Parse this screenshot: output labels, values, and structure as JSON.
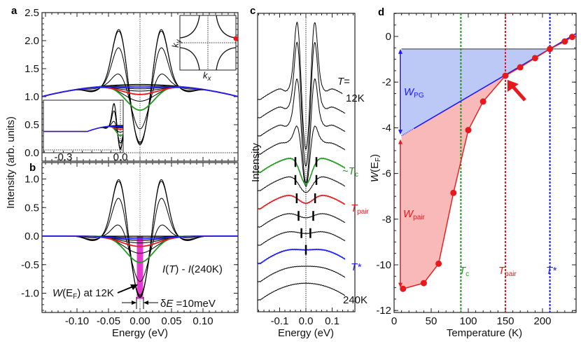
{
  "panel_letters": {
    "a": "a",
    "b": "b",
    "c": "c",
    "d": "d"
  },
  "colors": {
    "black": "#000000",
    "green": "#1e9a1e",
    "red": "#e8191c",
    "blue": "#1b1bff",
    "pg_fill": "#bcc9f7",
    "pair_fill": "#f9b9b9",
    "window": "#e21bc9"
  },
  "chart_data": [
    {
      "panel": "a",
      "type": "line",
      "ylabel": "Intensity (arb. units)",
      "xlim": [
        -0.155,
        0.155
      ],
      "ylim": [
        0.0,
        2.5
      ],
      "yticks": [
        "0.0",
        "0.5",
        "1.0",
        "1.5",
        "2.0",
        "2.5"
      ],
      "ytick_values": [
        0,
        0.5,
        1.0,
        1.5,
        2.0,
        2.5
      ],
      "inset_spectrum": {
        "xticks": [
          "-0.3",
          "0.0"
        ],
        "xtick_values": [
          -0.3,
          0.0
        ]
      },
      "inset_bz": {
        "xlabel": "k",
        "xlabel_sub": "x",
        "ylabel": "k",
        "ylabel_sub": "y",
        "marker_color": "#e8191c"
      }
    },
    {
      "panel": "b",
      "type": "line",
      "xlabel": "Energy (eV)",
      "xlim": [
        -0.155,
        0.155
      ],
      "ylim": [
        -1.3,
        1.25
      ],
      "xticks": [
        "-0.10",
        "-0.05",
        "0.00",
        "0.05",
        "0.10"
      ],
      "xtick_values": [
        -0.1,
        -0.05,
        0.0,
        0.05,
        0.1
      ],
      "yticks": [
        "-1.0",
        "-0.5",
        "0.0",
        "0.5",
        "1.0"
      ],
      "ytick_values": [
        -1.0,
        -0.5,
        0.0,
        0.5,
        1.0
      ],
      "annotation_difference": {
        "I1": "I",
        "T": "T",
        "rest": " - ",
        "I2": "I",
        "ref": "(240K)"
      },
      "annotation_weight": {
        "W": "W",
        "open": "(E",
        "sub": "F",
        "close": ") at 12K"
      },
      "annotation_window": {
        "delta": "δ",
        "E": "E",
        "value": " =10meV"
      },
      "integration_window_eV": [
        -0.005,
        0.005
      ]
    },
    {
      "panel": "a-b-c",
      "type": "line",
      "series": [
        {
          "T": 12,
          "color": "#000000",
          "peak": 1.03,
          "value_at_EF": -1.1,
          "wing": 0.08
        },
        {
          "T": 40,
          "color": "#000000",
          "peak": 1.0,
          "value_at_EF": -1.08,
          "wing": 0.07
        },
        {
          "T": 60,
          "color": "#000000",
          "peak": 0.7,
          "value_at_EF": -1.05,
          "wing": 0.06
        },
        {
          "T": 80,
          "color": "#000000",
          "peak": 0.22,
          "value_at_EF": -0.8,
          "wing": 0.03
        },
        {
          "T": 100,
          "color": "#1e9a1e",
          "peak": 0,
          "value_at_EF": -0.46,
          "wing": 0,
          "gap_marker_eV": 0.04
        },
        {
          "T": 120,
          "color": "#000000",
          "peak": 0,
          "value_at_EF": -0.3,
          "wing": 0,
          "gap_marker_eV": 0.04
        },
        {
          "T": 150,
          "color": "#e8191c",
          "peak": 0,
          "value_at_EF": -0.18,
          "wing": 0,
          "gap_marker_eV": 0.035
        },
        {
          "T": 170,
          "color": "#000000",
          "peak": 0,
          "value_at_EF": -0.12,
          "wing": 0,
          "gap_marker_eV": 0.028
        },
        {
          "T": 190,
          "color": "#000000",
          "peak": 0,
          "value_at_EF": -0.08,
          "wing": 0,
          "gap_marker_eV": 0.017
        },
        {
          "T": 210,
          "color": "#1b1bff",
          "peak": 0,
          "value_at_EF": -0.05,
          "wing": 0,
          "gap_marker_eV": 0.0
        },
        {
          "T": 230,
          "color": "#000000",
          "peak": 0,
          "value_at_EF": -0.02,
          "wing": 0
        },
        {
          "T": 240,
          "color": "#000000",
          "peak": 0,
          "value_at_EF": 0.0,
          "wing": 0
        }
      ]
    },
    {
      "panel": "c",
      "type": "line",
      "ylabel": "Intensity",
      "xlabel": "Energy (eV)",
      "xlim": [
        -0.185,
        0.185
      ],
      "xticks": [
        "-0.1",
        "0.0",
        "0.1"
      ],
      "xtick_values": [
        -0.1,
        0.0,
        0.1
      ],
      "labels": {
        "T_eq": "T",
        "eq": "=",
        "top": "12K",
        "tilde": "~",
        "Tc_T": "T",
        "Tc_sub": "c",
        "Tpair_T": "T",
        "Tpair_sub": "pair",
        "Tstar": "T*",
        "bottom": "240K"
      }
    },
    {
      "panel": "d",
      "type": "scatter",
      "xlabel": "Temperature (K)",
      "ylabel": {
        "W": "W",
        "open": "(E",
        "sub": "F",
        "close": ")"
      },
      "xlim": [
        0,
        245
      ],
      "ylim": [
        -12,
        1
      ],
      "xticks": [
        "0",
        "50",
        "100",
        "150",
        "200"
      ],
      "xtick_values": [
        0,
        50,
        100,
        150,
        200
      ],
      "yticks": [
        "0",
        "-2",
        "-4",
        "-6",
        "-8",
        "-10",
        "-12"
      ],
      "ytick_values": [
        0,
        -2,
        -4,
        -6,
        -8,
        -10,
        -12
      ],
      "x": [
        12,
        40,
        60,
        80,
        100,
        120,
        150,
        170,
        190,
        210,
        230,
        240
      ],
      "y": [
        -11.05,
        -10.8,
        -9.95,
        -6.85,
        -4.1,
        -2.85,
        -1.72,
        -1.35,
        -0.95,
        -0.55,
        -0.22,
        -0.02
      ],
      "point_color": "#e8191c",
      "linear_fit": {
        "T": [
          10,
          245
        ],
        "W": [
          -4.35,
          0.12
        ],
        "color": "#1b1bff"
      },
      "normal_state_level": -0.55,
      "vlines": [
        {
          "T": 90,
          "color": "#1e9a1e",
          "label": "T",
          "sub": "c"
        },
        {
          "T": 150,
          "color": "#e8191c",
          "label": "T",
          "sub": "pair"
        },
        {
          "T": 210,
          "color": "#1b1bff",
          "label": "T*",
          "sub": ""
        }
      ],
      "region_labels": {
        "pg": {
          "W": "W",
          "sub": "PG"
        },
        "pair": {
          "W": "W",
          "sub": "pair"
        }
      }
    }
  ]
}
